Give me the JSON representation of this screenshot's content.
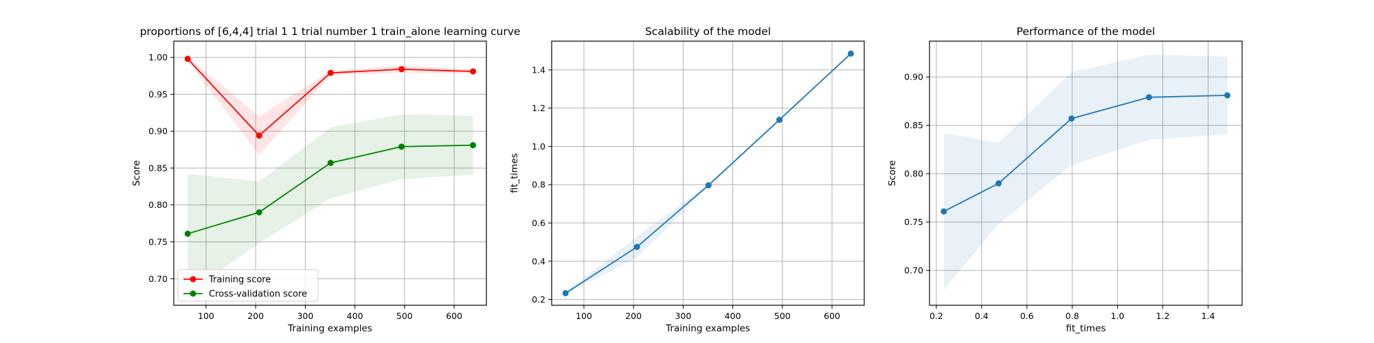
{
  "chart_data": [
    {
      "type": "line",
      "title": "proportions of [6,4,4] trial 1 1 trial number 1 train_alone learning curve",
      "xlabel": "Training examples",
      "ylabel": "Score",
      "xlim": [
        35,
        665
      ],
      "ylim": [
        0.664,
        1.022
      ],
      "xticks": [
        100,
        200,
        300,
        400,
        500,
        600
      ],
      "yticks": [
        0.7,
        0.75,
        0.8,
        0.85,
        0.9,
        0.95,
        1.0
      ],
      "ytick_labels": [
        "0.70",
        "0.75",
        "0.80",
        "0.85",
        "0.90",
        "0.95",
        "1.00"
      ],
      "grid": true,
      "legend": "lower-left",
      "x": [
        63,
        207,
        351,
        494,
        638
      ],
      "series": [
        {
          "name": "Training score",
          "color": "#ff0000",
          "values": [
            0.998,
            0.894,
            0.979,
            0.984,
            0.981
          ],
          "band_low": [
            0.995,
            0.868,
            0.976,
            0.979,
            0.978
          ],
          "band_high": [
            1.001,
            0.92,
            0.982,
            0.989,
            0.984
          ]
        },
        {
          "name": "Cross-validation score",
          "color": "#008000",
          "values": [
            0.761,
            0.79,
            0.857,
            0.879,
            0.881
          ],
          "band_low": [
            0.68,
            0.748,
            0.809,
            0.835,
            0.841
          ],
          "band_high": [
            0.842,
            0.832,
            0.905,
            0.923,
            0.921
          ]
        }
      ]
    },
    {
      "type": "line",
      "title": "Scalability of the model",
      "xlabel": "Training examples",
      "ylabel": "fit_times",
      "xlim": [
        35,
        665
      ],
      "ylim": [
        0.17,
        1.55
      ],
      "xticks": [
        100,
        200,
        300,
        400,
        500,
        600
      ],
      "yticks": [
        0.2,
        0.4,
        0.6,
        0.8,
        1.0,
        1.2,
        1.4
      ],
      "ytick_labels": [
        "0.2",
        "0.4",
        "0.6",
        "0.8",
        "1.0",
        "1.2",
        "1.4"
      ],
      "grid": true,
      "x": [
        63,
        207,
        351,
        494,
        638
      ],
      "series": [
        {
          "color": "#1f77b4",
          "values": [
            0.233,
            0.475,
            0.797,
            1.139,
            1.485
          ],
          "band_low": [
            0.228,
            0.42,
            0.79,
            1.134,
            1.48
          ],
          "band_high": [
            0.238,
            0.53,
            0.804,
            1.144,
            1.49
          ]
        }
      ]
    },
    {
      "type": "line",
      "title": "Performance of the model",
      "xlabel": "fit_times",
      "ylabel": "Score",
      "xlim": [
        0.17,
        1.55
      ],
      "ylim": [
        0.664,
        0.937
      ],
      "xticks": [
        0.2,
        0.4,
        0.6,
        0.8,
        1.0,
        1.2,
        1.4
      ],
      "xtick_labels": [
        "0.2",
        "0.4",
        "0.6",
        "0.8",
        "1.0",
        "1.2",
        "1.4"
      ],
      "yticks": [
        0.7,
        0.75,
        0.8,
        0.85,
        0.9
      ],
      "ytick_labels": [
        "0.70",
        "0.75",
        "0.80",
        "0.85",
        "0.90"
      ],
      "grid": true,
      "x": [
        0.233,
        0.475,
        0.797,
        1.139,
        1.485
      ],
      "series": [
        {
          "color": "#1f77b4",
          "values": [
            0.761,
            0.79,
            0.857,
            0.879,
            0.881
          ],
          "band_low": [
            0.68,
            0.748,
            0.809,
            0.835,
            0.841
          ],
          "band_high": [
            0.842,
            0.832,
            0.905,
            0.923,
            0.921
          ]
        }
      ]
    }
  ]
}
